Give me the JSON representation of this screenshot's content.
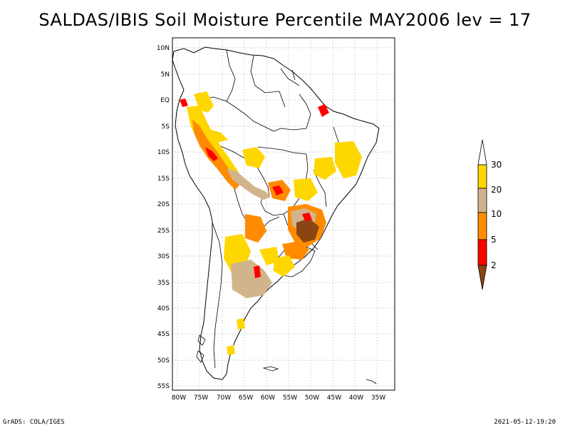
{
  "title": "SALDAS/IBIS Soil Moisture Percentile MAY2006 lev = 17",
  "footer": {
    "left": "GrADS: COLA/IGES",
    "right": "2021-05-12-19:20"
  },
  "map": {
    "lon_range": [
      -81,
      -31
    ],
    "lat_range": [
      -56,
      12
    ],
    "lon_ticks": [
      "80W",
      "75W",
      "70W",
      "65W",
      "60W",
      "55W",
      "50W",
      "45W",
      "40W",
      "35W"
    ],
    "lat_ticks": [
      "10N",
      "5N",
      "EQ",
      "5S",
      "10S",
      "15S",
      "20S",
      "25S",
      "30S",
      "35S",
      "40S",
      "45S",
      "50S",
      "55S"
    ],
    "grid": true
  },
  "colorbar": {
    "labels": [
      "2",
      "5",
      "10",
      "20",
      "30"
    ],
    "colors": {
      "lt2": "#8b4513",
      "c2_5": "#ff0000",
      "c5_10": "#ff8c00",
      "c10_20": "#d2b48c",
      "c20_30": "#ffd700",
      "gt30": "#ffffff"
    }
  }
}
